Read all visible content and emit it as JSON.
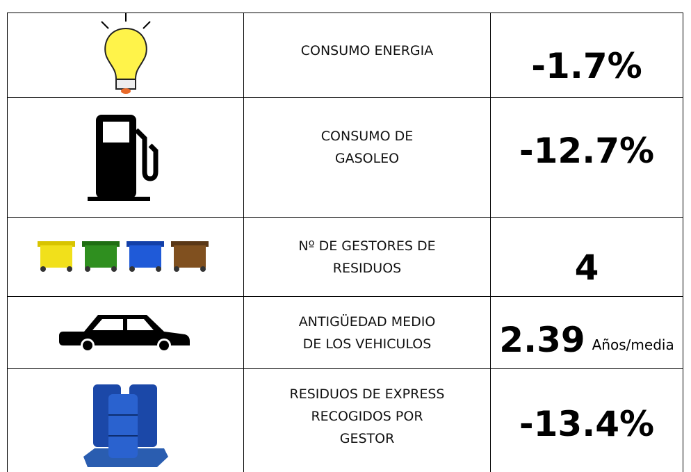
{
  "rows": [
    {
      "label": [
        "CONSUMO ENERGIA"
      ],
      "value": "-1.7%"
    },
    {
      "label": [
        "CONSUMO DE",
        "GASOLEO"
      ],
      "value": "-12.7%"
    },
    {
      "label": [
        "Nº DE GESTORES DE",
        "RESIDUOS"
      ],
      "value": "4"
    },
    {
      "label": [
        "ANTIGÜEDAD MEDIO",
        "DE LOS VEHICULOS"
      ],
      "value": "2.39",
      "unit": "Años/media"
    },
    {
      "label": [
        "RESIDUOS  DE EXPRESS",
        "RECOGIDOS POR",
        "GESTOR"
      ],
      "value": "-13.4%"
    }
  ]
}
